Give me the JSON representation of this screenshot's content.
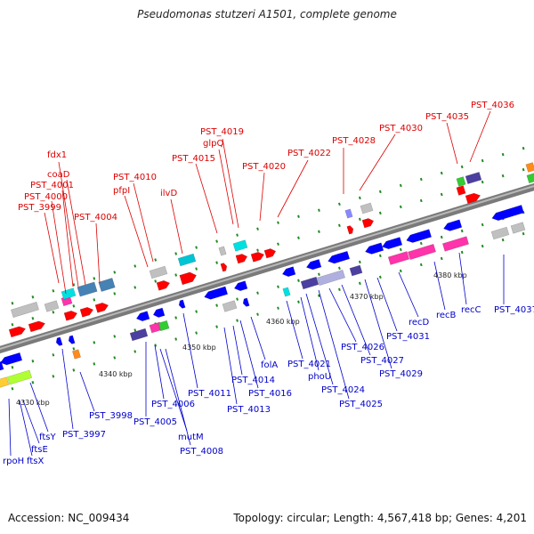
{
  "title": "Pseudomonas stutzeri A1501, complete genome",
  "accession": "Accession: NC_009434",
  "topology": "Topology: circular; Length: 4,567,418 bp; Genes: 4,201",
  "colors": {
    "forward_label": "#dd0000",
    "reverse_label": "#0000cc",
    "forward_gene": "#ff0000",
    "reverse_gene": "#0000ff",
    "backbone": "#8a8a8a",
    "tick": "#228b22"
  },
  "ticks": [
    "4330 kbp",
    "4340 kbp",
    "4350 kbp",
    "4360 kbp",
    "4370 kbp",
    "4380 kbp"
  ],
  "forward_labels": [
    "fdx1",
    "coaD",
    "PST_4001",
    "PST_4000",
    "PST_3999",
    "PST_4004",
    "PST_4010",
    "pfpI",
    "ilvD",
    "PST_4019",
    "glpQ",
    "PST_4015",
    "PST_4020",
    "PST_4022",
    "PST_4028",
    "PST_4030",
    "PST_4035",
    "PST_4036"
  ],
  "reverse_labels": [
    "rpoH",
    "ftsX",
    "ftsE",
    "ftsY",
    "PST_3997",
    "PST_3998",
    "PST_4005",
    "PST_4006",
    "mutM",
    "PST_4008",
    "PST_4011",
    "PST_4013",
    "PST_4014",
    "PST_4016",
    "folA",
    "PST_4021",
    "phoU",
    "PST_4024",
    "PST_4025",
    "PST_4026",
    "PST_4027",
    "PST_4029",
    "PST_4031",
    "recD",
    "recB",
    "recC",
    "PST_4037"
  ]
}
